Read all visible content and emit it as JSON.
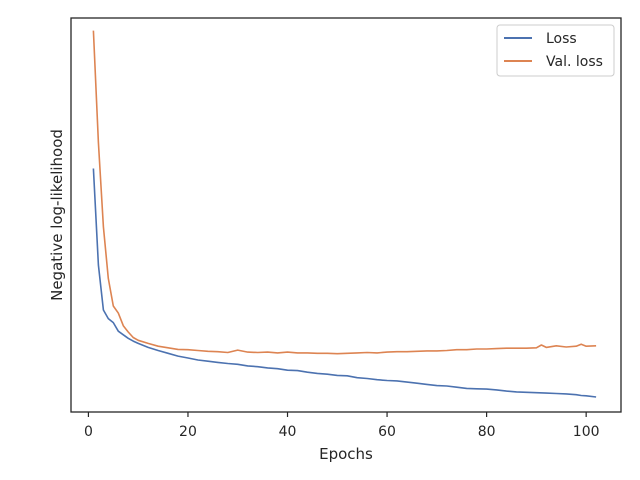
{
  "chart_data": {
    "type": "line",
    "xlabel": "Epochs",
    "ylabel": "Negative log-likelihood",
    "xlim": [
      -3.5,
      107
    ],
    "ylim": [
      0.0,
      1.0
    ],
    "xticks": [
      0,
      20,
      40,
      60,
      80,
      100
    ],
    "yticks_shown": false,
    "grid": false,
    "legend_position": "top-right",
    "series": [
      {
        "name": "Loss",
        "color": "#4c72b0",
        "x": [
          1,
          2,
          3,
          4,
          5,
          6,
          7,
          8,
          9,
          10,
          12,
          14,
          16,
          18,
          20,
          22,
          24,
          26,
          28,
          30,
          32,
          34,
          36,
          38,
          40,
          42,
          44,
          46,
          48,
          50,
          52,
          54,
          56,
          58,
          60,
          62,
          64,
          66,
          68,
          70,
          72,
          74,
          76,
          78,
          80,
          82,
          84,
          86,
          88,
          90,
          92,
          94,
          96,
          98,
          99,
          100,
          102
        ],
        "y": [
          0.618,
          0.373,
          0.259,
          0.237,
          0.227,
          0.205,
          0.196,
          0.187,
          0.18,
          0.174,
          0.164,
          0.156,
          0.149,
          0.142,
          0.137,
          0.132,
          0.129,
          0.126,
          0.123,
          0.121,
          0.117,
          0.115,
          0.112,
          0.11,
          0.106,
          0.105,
          0.101,
          0.098,
          0.096,
          0.093,
          0.092,
          0.087,
          0.085,
          0.082,
          0.08,
          0.079,
          0.076,
          0.073,
          0.07,
          0.067,
          0.066,
          0.063,
          0.06,
          0.059,
          0.058,
          0.056,
          0.053,
          0.051,
          0.05,
          0.049,
          0.048,
          0.047,
          0.046,
          0.044,
          0.042,
          0.041,
          0.038
        ]
      },
      {
        "name": "Val. loss",
        "color": "#dd8452",
        "x": [
          1,
          2,
          3,
          4,
          5,
          6,
          7,
          8,
          9,
          10,
          12,
          14,
          16,
          18,
          20,
          22,
          24,
          26,
          28,
          30,
          32,
          34,
          36,
          38,
          40,
          42,
          44,
          46,
          48,
          50,
          52,
          54,
          56,
          58,
          60,
          62,
          64,
          66,
          68,
          70,
          72,
          74,
          76,
          78,
          80,
          82,
          84,
          86,
          88,
          90,
          91,
          92,
          94,
          96,
          98,
          99,
          100,
          102
        ],
        "y": [
          0.968,
          0.684,
          0.47,
          0.339,
          0.269,
          0.251,
          0.219,
          0.203,
          0.189,
          0.182,
          0.174,
          0.167,
          0.163,
          0.159,
          0.158,
          0.156,
          0.154,
          0.153,
          0.151,
          0.157,
          0.152,
          0.151,
          0.152,
          0.15,
          0.152,
          0.15,
          0.15,
          0.149,
          0.149,
          0.148,
          0.149,
          0.15,
          0.151,
          0.15,
          0.152,
          0.153,
          0.153,
          0.154,
          0.155,
          0.155,
          0.156,
          0.158,
          0.158,
          0.16,
          0.16,
          0.161,
          0.162,
          0.162,
          0.162,
          0.163,
          0.17,
          0.164,
          0.168,
          0.165,
          0.167,
          0.172,
          0.167,
          0.168
        ]
      }
    ]
  }
}
